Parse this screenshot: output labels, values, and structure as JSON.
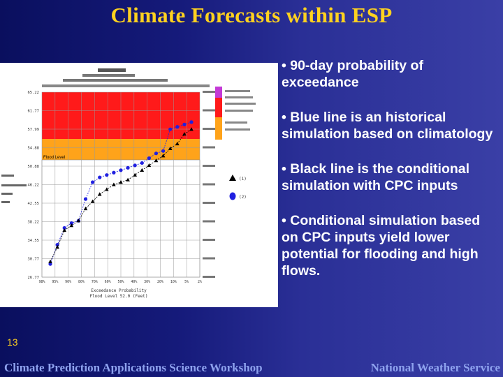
{
  "slide": {
    "title": "Climate Forecasts within ESP",
    "number": "13",
    "bullets": [
      "• 90-day probability of exceedance",
      "• Blue line is an historical simulation based on climatology",
      "• Black line is the conditional simulation with CPC inputs",
      "• Conditional simulation based on CPC inputs yield lower potential for flooding and high flows."
    ],
    "footer_left": "Climate Prediction Applications Science Workshop",
    "footer_right": "National Weather Service"
  },
  "figure": {
    "flood_level_label": "Flood Level",
    "y_tick_labels": [
      "65.22",
      "61.77",
      "57.99",
      "54.88",
      "50.88",
      "46.22",
      "42.55",
      "38.22",
      "34.55",
      "30.77",
      "26.77"
    ],
    "x_tick_labels": [
      "98%",
      "95%",
      "90%",
      "80%",
      "70%",
      "60%",
      "50%",
      "40%",
      "30%",
      "20%",
      "10%",
      "5%",
      "2%"
    ],
    "x_axis_label_1": "Exceedance Probability",
    "x_axis_label_2": "Flood Level 52.0 (Feet)",
    "legend_text_1": "(1)",
    "legend_text_2": "(2)",
    "colors": {
      "red_zone": "#ff1a1a",
      "orange_zone": "#ffa31a",
      "magenta_zone": "#c43ad6",
      "blue_series": "#2020e0",
      "black_series": "#000000"
    }
  },
  "chart_data": {
    "type": "scatter",
    "x": [
      98,
      95,
      90,
      85,
      80,
      75,
      70,
      65,
      60,
      55,
      50,
      45,
      40,
      35,
      30,
      25,
      20,
      15,
      10,
      5,
      2
    ],
    "series": [
      {
        "marker": "circle",
        "color": "#2020e0",
        "values": [
          29.5,
          33.5,
          37.0,
          38.0,
          38.5,
          43.0,
          46.5,
          47.5,
          48.0,
          48.5,
          49.0,
          49.5,
          50.0,
          50.5,
          51.5,
          52.5,
          53.0,
          57.5,
          58.0,
          58.5,
          59.0
        ]
      },
      {
        "marker": "triangle",
        "color": "#000000",
        "values": [
          30.0,
          33.0,
          36.5,
          37.5,
          38.5,
          41.0,
          42.5,
          44.0,
          45.0,
          46.0,
          46.5,
          47.0,
          48.0,
          49.0,
          50.0,
          51.0,
          52.0,
          53.5,
          54.5,
          56.5,
          57.5
        ]
      }
    ],
    "xlabel": "Exceedance Probability",
    "ylim": [
      26.77,
      65.22
    ],
    "grid": true
  }
}
